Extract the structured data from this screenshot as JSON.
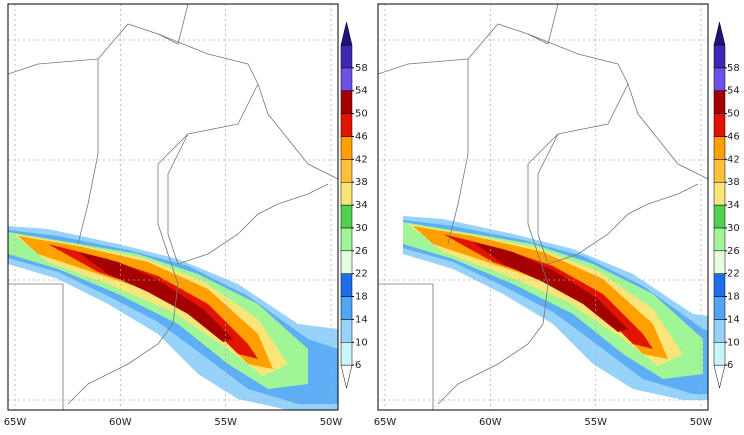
{
  "panels": [
    {
      "lon_labels": [
        "65W",
        "60W",
        "55W",
        "50W"
      ]
    },
    {
      "lon_labels": [
        "65W",
        "60W",
        "55W",
        "50W"
      ]
    }
  ],
  "colorbar": {
    "levels": [
      6,
      10,
      14,
      18,
      22,
      26,
      30,
      34,
      38,
      42,
      46,
      50,
      54,
      58
    ],
    "colors": [
      "#ffffff",
      "#c8f5fa",
      "#96d2fa",
      "#50a5f5",
      "#1e6eeb",
      "#e6ffe1",
      "#a0f596",
      "#50d250",
      "#fae678",
      "#ffc03c",
      "#ffa000",
      "#e11400",
      "#a50000",
      "#6e50e6",
      "#3c28b4",
      "#1e1478"
    ]
  }
}
